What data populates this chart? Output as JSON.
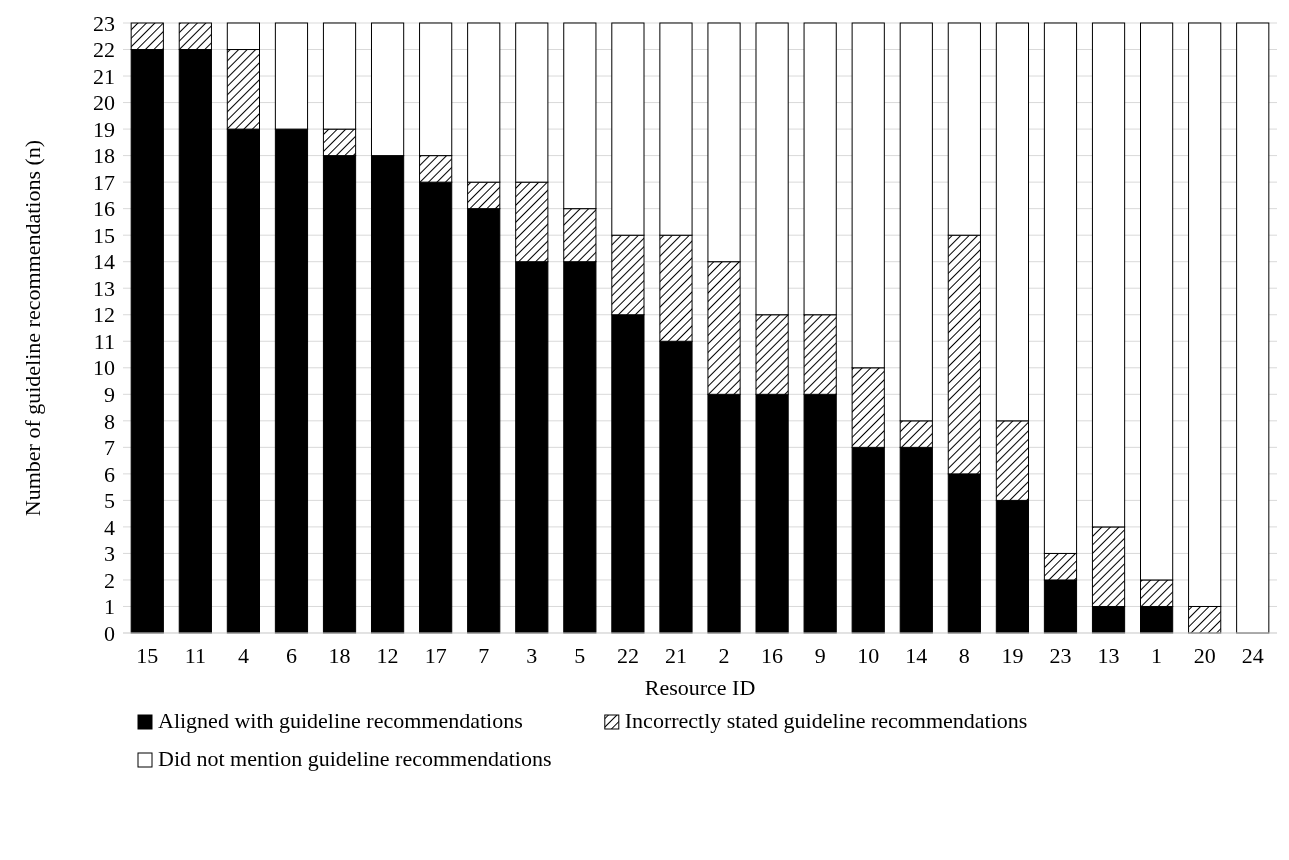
{
  "chart_data": {
    "type": "bar",
    "stacked": true,
    "xlabel": "Resource ID",
    "ylabel": "Number of guideline recommendations (n)",
    "categories": [
      "15",
      "11",
      "4",
      "6",
      "18",
      "12",
      "17",
      "7",
      "3",
      "5",
      "22",
      "21",
      "2",
      "16",
      "9",
      "10",
      "14",
      "8",
      "19",
      "23",
      "13",
      "1",
      "20",
      "24"
    ],
    "series": [
      {
        "name": "Aligned with guideline recommendations",
        "color": "#000000",
        "values": [
          22,
          22,
          19,
          19,
          18,
          18,
          17,
          16,
          14,
          14,
          12,
          11,
          9,
          9,
          9,
          7,
          7,
          6,
          5,
          2,
          1,
          1,
          0,
          0
        ]
      },
      {
        "name": "Incorrectly stated guideline recommendations",
        "color": "#000000",
        "values": [
          1,
          1,
          3,
          0,
          1,
          0,
          1,
          1,
          3,
          2,
          3,
          4,
          5,
          3,
          3,
          3,
          1,
          9,
          3,
          1,
          3,
          1,
          1,
          0
        ]
      },
      {
        "name": "Did not mention guideline recommendations",
        "color": "#ffffff",
        "values": [
          0,
          0,
          1,
          4,
          4,
          5,
          5,
          6,
          6,
          7,
          8,
          8,
          9,
          11,
          11,
          13,
          15,
          8,
          15,
          20,
          19,
          21,
          22,
          23
        ]
      }
    ],
    "ylim": [
      0,
      23
    ],
    "yticks": [
      0,
      1,
      2,
      3,
      4,
      5,
      6,
      7,
      8,
      9,
      10,
      11,
      12,
      13,
      14,
      15,
      16,
      17,
      18,
      19,
      20,
      21,
      22,
      23
    ],
    "grid": "y",
    "legend": "bottom"
  }
}
